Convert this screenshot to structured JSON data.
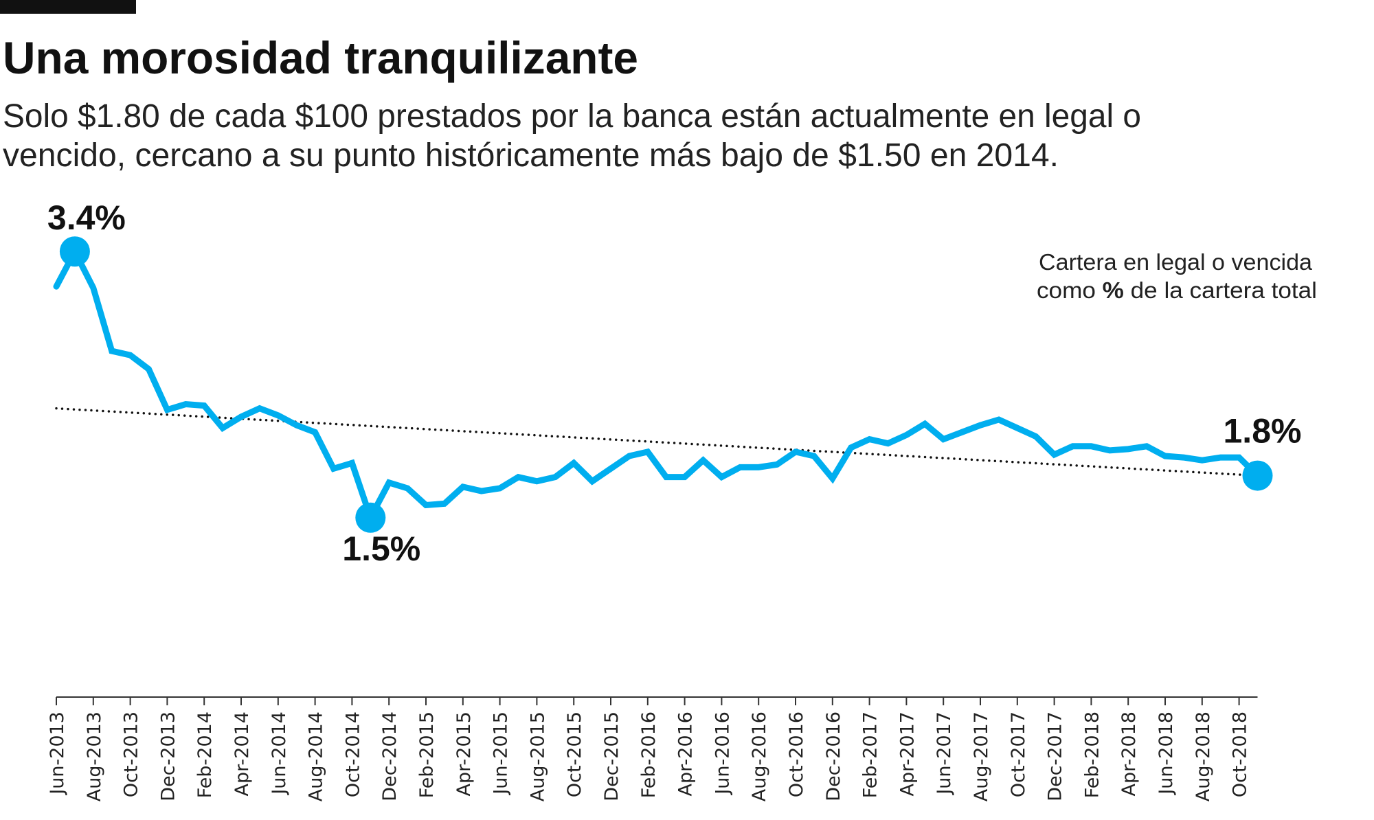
{
  "header": {
    "title": "Una morosidad tranquilizante",
    "subtitle_line1": "Solo $1.80 de cada $100 prestados por la banca están actualmente en legal o",
    "subtitle_line2": "vencido, cercano a su punto históricamente más bajo de $1.50 en 2014."
  },
  "chart_data": {
    "type": "line",
    "title": "Una morosidad tranquilizante",
    "xlabel": "",
    "ylabel": "",
    "legend_note_line1": "Cartera en legal o vencida",
    "legend_note_line2_pre": "como ",
    "legend_note_line2_bold": "%",
    "legend_note_line2_post": " de la cartera total",
    "legend_placement": "top-right",
    "grid": false,
    "line_color": "#00AEEF",
    "ylim": [
      1.0,
      3.6
    ],
    "x": [
      "Jun-2013",
      "Jul-2013",
      "Aug-2013",
      "Sep-2013",
      "Oct-2013",
      "Nov-2013",
      "Dec-2013",
      "Jan-2014",
      "Feb-2014",
      "Mar-2014",
      "Apr-2014",
      "May-2014",
      "Jun-2014",
      "Jul-2014",
      "Aug-2014",
      "Sep-2014",
      "Oct-2014",
      "Nov-2014",
      "Dec-2014",
      "Jan-2015",
      "Feb-2015",
      "Mar-2015",
      "Apr-2015",
      "May-2015",
      "Jun-2015",
      "Jul-2015",
      "Aug-2015",
      "Sep-2015",
      "Oct-2015",
      "Nov-2015",
      "Dec-2015",
      "Jan-2016",
      "Feb-2016",
      "Mar-2016",
      "Apr-2016",
      "May-2016",
      "Jun-2016",
      "Jul-2016",
      "Aug-2016",
      "Sep-2016",
      "Oct-2016",
      "Nov-2016",
      "Dec-2016",
      "Jan-2017",
      "Feb-2017",
      "Mar-2017",
      "Apr-2017",
      "May-2017",
      "Jun-2017",
      "Jul-2017",
      "Aug-2017",
      "Sep-2017",
      "Oct-2017",
      "Nov-2017",
      "Dec-2017",
      "Jan-2018",
      "Feb-2018",
      "Mar-2018",
      "Apr-2018",
      "May-2018",
      "Jun-2018",
      "Jul-2018",
      "Aug-2018",
      "Sep-2018",
      "Oct-2018",
      "Nov-2018"
    ],
    "tick_labels": [
      "Jun-2013",
      "Aug-2013",
      "Oct-2013",
      "Dec-2013",
      "Feb-2014",
      "Apr-2014",
      "Jun-2014",
      "Aug-2014",
      "Oct-2014",
      "Dec-2014",
      "Feb-2015",
      "Apr-2015",
      "Jun-2015",
      "Aug-2015",
      "Oct-2015",
      "Dec-2015",
      "Feb-2016",
      "Apr-2016",
      "Jun-2016",
      "Aug-2016",
      "Oct-2016",
      "Dec-2016",
      "Feb-2017",
      "Apr-2017",
      "Jun-2017",
      "Aug-2017",
      "Oct-2017",
      "Dec-2017",
      "Feb-2018",
      "Apr-2018",
      "Jun-2018",
      "Aug-2018",
      "Oct-2018"
    ],
    "series": [
      {
        "values": [
          3.15,
          3.4,
          3.14,
          2.69,
          2.66,
          2.56,
          2.27,
          2.31,
          2.3,
          2.14,
          2.22,
          2.28,
          2.23,
          2.16,
          2.11,
          1.85,
          1.89,
          1.5,
          1.75,
          1.71,
          1.59,
          1.6,
          1.72,
          1.69,
          1.71,
          1.79,
          1.76,
          1.79,
          1.89,
          1.76,
          1.85,
          1.94,
          1.97,
          1.79,
          1.79,
          1.91,
          1.79,
          1.86,
          1.86,
          1.88,
          1.97,
          1.94,
          1.78,
          2.0,
          2.06,
          2.03,
          2.09,
          2.17,
          2.06,
          2.11,
          2.16,
          2.2,
          2.14,
          2.08,
          1.95,
          2.01,
          2.01,
          1.98,
          1.99,
          2.01,
          1.94,
          1.93,
          1.91,
          1.93,
          1.93,
          1.8
        ]
      }
    ],
    "trendline": {
      "start": 2.28,
      "end": 1.8,
      "style": "dotted"
    },
    "annotations": [
      {
        "label": "3.4%",
        "x": "Jul-2013",
        "value": 3.4
      },
      {
        "label": "1.5%",
        "x": "Nov-2014",
        "value": 1.5
      },
      {
        "label": "1.8%",
        "x": "Nov-2018",
        "value": 1.8
      }
    ]
  }
}
